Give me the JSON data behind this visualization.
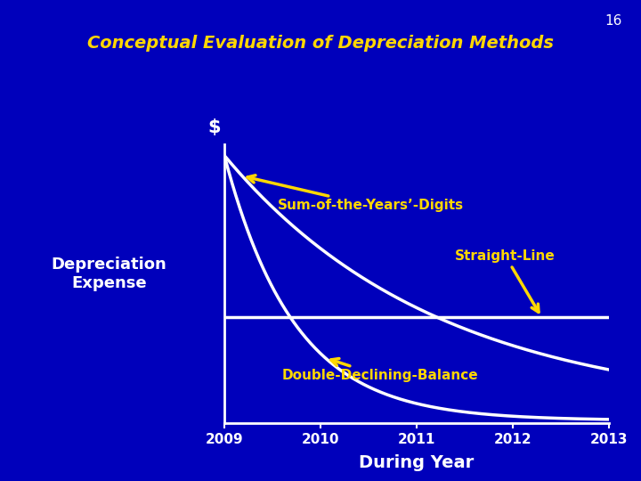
{
  "title": "Conceptual Evaluation of Depreciation Methods",
  "slide_number": "16",
  "background_color": "#0000BB",
  "title_color": "#FFD700",
  "text_color": "white",
  "ylabel_text": "Depreciation\nExpense",
  "xlabel_text": "During Year",
  "dollar_sign": "$",
  "x_ticks": [
    2009,
    2010,
    2011,
    2012,
    2013
  ],
  "line_color": "white",
  "arrow_color": "#FFD700",
  "axis_color": "white",
  "soyd_label": "Sum-of-the-Years’-Digits",
  "sl_label": "Straight-Line",
  "ddb_label": "Double-Declining-Balance"
}
